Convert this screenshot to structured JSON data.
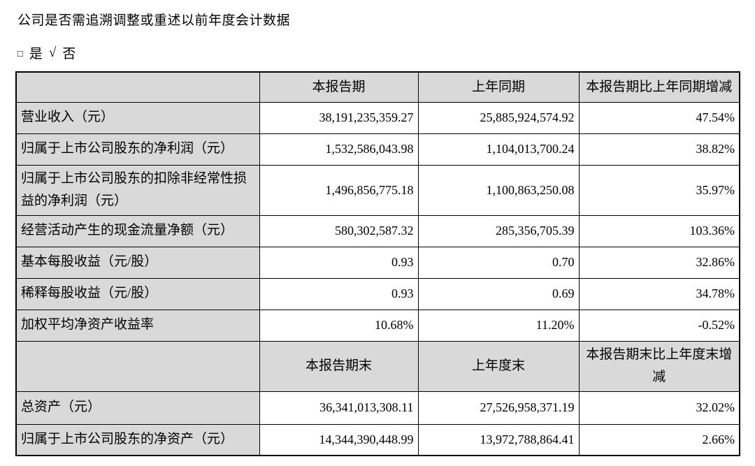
{
  "page": {
    "question": "公司是否需追溯调整或重述以前年度会计数据",
    "checkbox": {
      "box_glyph": "□",
      "yes_label": "是",
      "check_glyph": "√",
      "no_label": "否"
    }
  },
  "colors": {
    "header_bg": "#d9d9d9",
    "border": "#000000",
    "text": "#000000",
    "page_bg": "#ffffff"
  },
  "table": {
    "section1": {
      "headers": {
        "blank": "",
        "current": "本报告期",
        "prior": "上年同期",
        "change": "本报告期比上年同期增减"
      },
      "rows": [
        {
          "label": "营业收入（元）",
          "current": "38,191,235,359.27",
          "prior": "25,885,924,574.92",
          "change": "47.54%"
        },
        {
          "label": "归属于上市公司股东的净利润（元）",
          "current": "1,532,586,043.98",
          "prior": "1,104,013,700.24",
          "change": "38.82%"
        },
        {
          "label": "归属于上市公司股东的扣除非经常性损益的净利润（元）",
          "current": "1,496,856,775.18",
          "prior": "1,100,863,250.08",
          "change": "35.97%"
        },
        {
          "label": "经营活动产生的现金流量净额（元）",
          "current": "580,302,587.32",
          "prior": "285,356,705.39",
          "change": "103.36%"
        },
        {
          "label": "基本每股收益（元/股）",
          "current": "0.93",
          "prior": "0.70",
          "change": "32.86%"
        },
        {
          "label": "稀释每股收益（元/股）",
          "current": "0.93",
          "prior": "0.69",
          "change": "34.78%"
        },
        {
          "label": "加权平均净资产收益率",
          "current": "10.68%",
          "prior": "11.20%",
          "change": "-0.52%"
        }
      ]
    },
    "section2": {
      "headers": {
        "blank": "",
        "current": "本报告期末",
        "prior": "上年度末",
        "change": "本报告期末比上年度末增减"
      },
      "rows": [
        {
          "label": "总资产（元）",
          "current": "36,341,013,308.11",
          "prior": "27,526,958,371.19",
          "change": "32.02%"
        },
        {
          "label": "归属于上市公司股东的净资产（元）",
          "current": "14,344,390,448.99",
          "prior": "13,972,788,864.41",
          "change": "2.66%"
        }
      ]
    }
  }
}
